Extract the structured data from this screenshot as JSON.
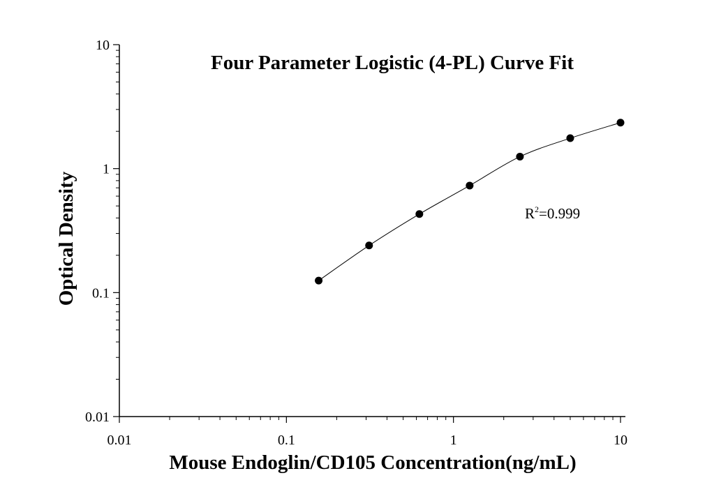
{
  "chart_data": {
    "type": "scatter",
    "title": "Four Parameter Logistic (4-PL) Curve Fit",
    "xlabel": "Mouse Endoglin/CD105 Concentration(ng/mL)",
    "ylabel": "Optical Density",
    "xscale": "log",
    "yscale": "log",
    "xlim": [
      0.01,
      10
    ],
    "ylim": [
      0.01,
      10
    ],
    "x_ticks": [
      0.01,
      0.1,
      1,
      10
    ],
    "x_tick_labels": [
      "0.01",
      "0.1",
      "1",
      "10"
    ],
    "y_ticks": [
      0.01,
      0.1,
      1,
      10
    ],
    "y_tick_labels": [
      "0.01",
      "0.1",
      "1",
      "10"
    ],
    "grid": false,
    "series": [
      {
        "x": [
          0.156,
          0.3125,
          0.625,
          1.25,
          2.5,
          5,
          10
        ],
        "y": [
          0.125,
          0.24,
          0.43,
          0.73,
          1.25,
          1.76,
          2.35
        ],
        "marker": "circle",
        "color": "#000000",
        "fit_line": true
      }
    ],
    "annotation": {
      "base": "R",
      "sup": "2",
      "rest": "=0.999"
    }
  }
}
